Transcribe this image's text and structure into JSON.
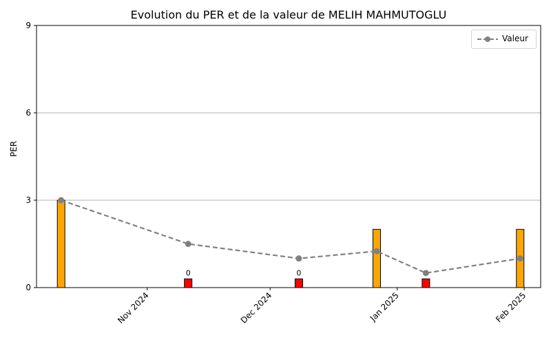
{
  "chart_data": {
    "type": "bar",
    "title": "Evolution du PER et de la valeur de MELIH MAHMUTOGLU",
    "xlabel": "",
    "ylabel": "PER",
    "ylim": [
      0,
      9
    ],
    "yticks": [
      "0",
      "3",
      "6",
      "9"
    ],
    "xlim": [
      "2024-10-05",
      "2025-02-05"
    ],
    "xticks": [
      {
        "date": "2024-11-01",
        "label": "Nov 2024"
      },
      {
        "date": "2024-12-01",
        "label": "Dec 2024"
      },
      {
        "date": "2025-01-01",
        "label": "Jan 2025"
      },
      {
        "date": "2025-02-01",
        "label": "Feb 2025"
      }
    ],
    "grid": "horizontal",
    "legend_position": "top-right",
    "bars": [
      {
        "date": "2024-10-11",
        "value": 3.0,
        "color": "#ffa500",
        "label": ""
      },
      {
        "date": "2024-11-11",
        "value": 0.3,
        "color": "#ff0000",
        "label": "0"
      },
      {
        "date": "2024-12-08",
        "value": 0.3,
        "color": "#ff0000",
        "label": "0"
      },
      {
        "date": "2024-12-27",
        "value": 2.0,
        "color": "#ffa500",
        "label": ""
      },
      {
        "date": "2025-01-08",
        "value": 0.3,
        "color": "#ff0000",
        "label": "0"
      },
      {
        "date": "2025-01-31",
        "value": 2.0,
        "color": "#ffa500",
        "label": ""
      }
    ],
    "series": [
      {
        "name": "Valeur",
        "color": "#808080",
        "points": [
          {
            "date": "2024-10-11",
            "value": 3.0
          },
          {
            "date": "2024-11-11",
            "value": 1.5
          },
          {
            "date": "2024-12-08",
            "value": 1.0
          },
          {
            "date": "2024-12-27",
            "value": 1.25
          },
          {
            "date": "2025-01-08",
            "value": 0.5
          },
          {
            "date": "2025-01-31",
            "value": 1.0
          }
        ]
      }
    ]
  }
}
